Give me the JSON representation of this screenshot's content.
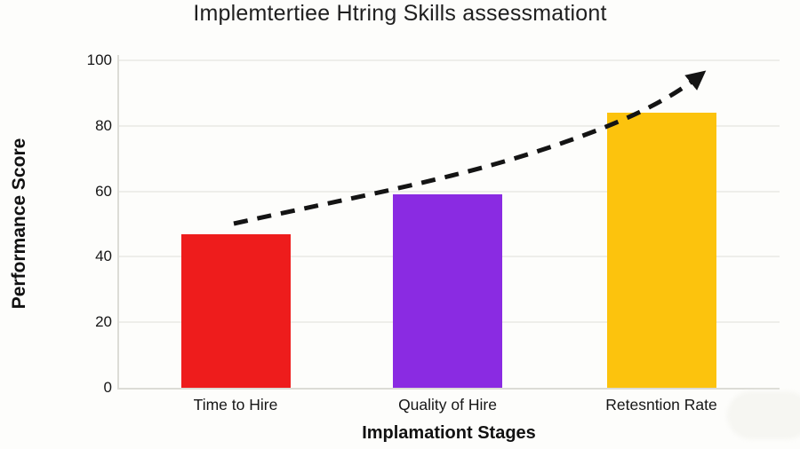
{
  "chart_data": {
    "type": "bar",
    "title": "Implemtertiee Htring Skills assessmationt",
    "xlabel": "Implamationt Stages",
    "ylabel": "Performance Score",
    "categories": [
      "Time to Hire",
      "Quality of Hire",
      "Retesntion Rate"
    ],
    "values": [
      47,
      59,
      84
    ],
    "bar_colors": [
      "#ee1c1c",
      "#8a2be2",
      "#fcc30d"
    ],
    "ylim": [
      0,
      100
    ],
    "yticks": [
      0,
      20,
      40,
      60,
      80,
      100
    ],
    "grid": true,
    "legend": "none",
    "annotations": [
      {
        "name": "trend-arrow",
        "style": "dashed",
        "color": "#141414",
        "start_value": 50,
        "end_value": 98,
        "direction": "up-right"
      }
    ],
    "background": "#fdfdfb",
    "watermark": "faint-blob-bottom-right"
  }
}
